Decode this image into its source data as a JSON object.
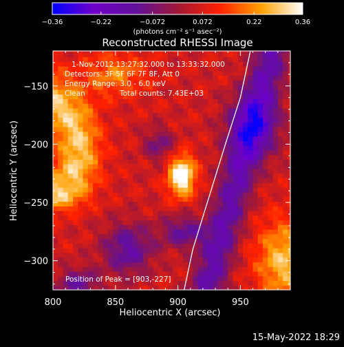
{
  "chart_data": {
    "type": "heatmap",
    "title": "Reconstructed RHESSI Image",
    "xlabel": "Heliocentric X (arcsec)",
    "ylabel": "Heliocentric Y (arcsec)",
    "xlim": [
      800,
      990
    ],
    "ylim": [
      -325,
      -120
    ],
    "xticks": [
      "800",
      "850",
      "900",
      "950"
    ],
    "yticks": [
      "-150",
      "-200",
      "-250",
      "-300"
    ],
    "colorbar": {
      "range": [
        -0.36,
        0.36
      ],
      "ticks": [
        "-0.36",
        "-0.22",
        "-0.072",
        "0.072",
        "0.22",
        "0.36"
      ],
      "unit_label": "(photons cm⁻² s⁻¹ asec⁻²)",
      "colors": [
        "#0000ff",
        "#7000c8",
        "#60109a",
        "#a01838",
        "#ff2000",
        "#ffa000",
        "#ffffff"
      ]
    },
    "annotations": {
      "time_range": "1-Nov-2012 13:27:32.000 to 13:33:32.000",
      "detectors": "Detectors: 3F 5F 6F 7F 8F, Att 0",
      "energy": "Energy Range: 3.0 - 6.0 keV",
      "clean": "Clean",
      "total_counts": "Total counts: 7.43E+03",
      "peak": "Position of Peak = [903,-227]"
    },
    "peak": {
      "x": 903,
      "y": -227,
      "value": 0.36
    },
    "limb_curve": [
      [
        958,
        -120
      ],
      [
        950,
        -160
      ],
      [
        938,
        -200
      ],
      [
        925,
        -245
      ],
      [
        912,
        -290
      ],
      [
        905,
        -325
      ]
    ],
    "grid": false
  },
  "footer": {
    "date": "15-May-2022 18:29"
  }
}
